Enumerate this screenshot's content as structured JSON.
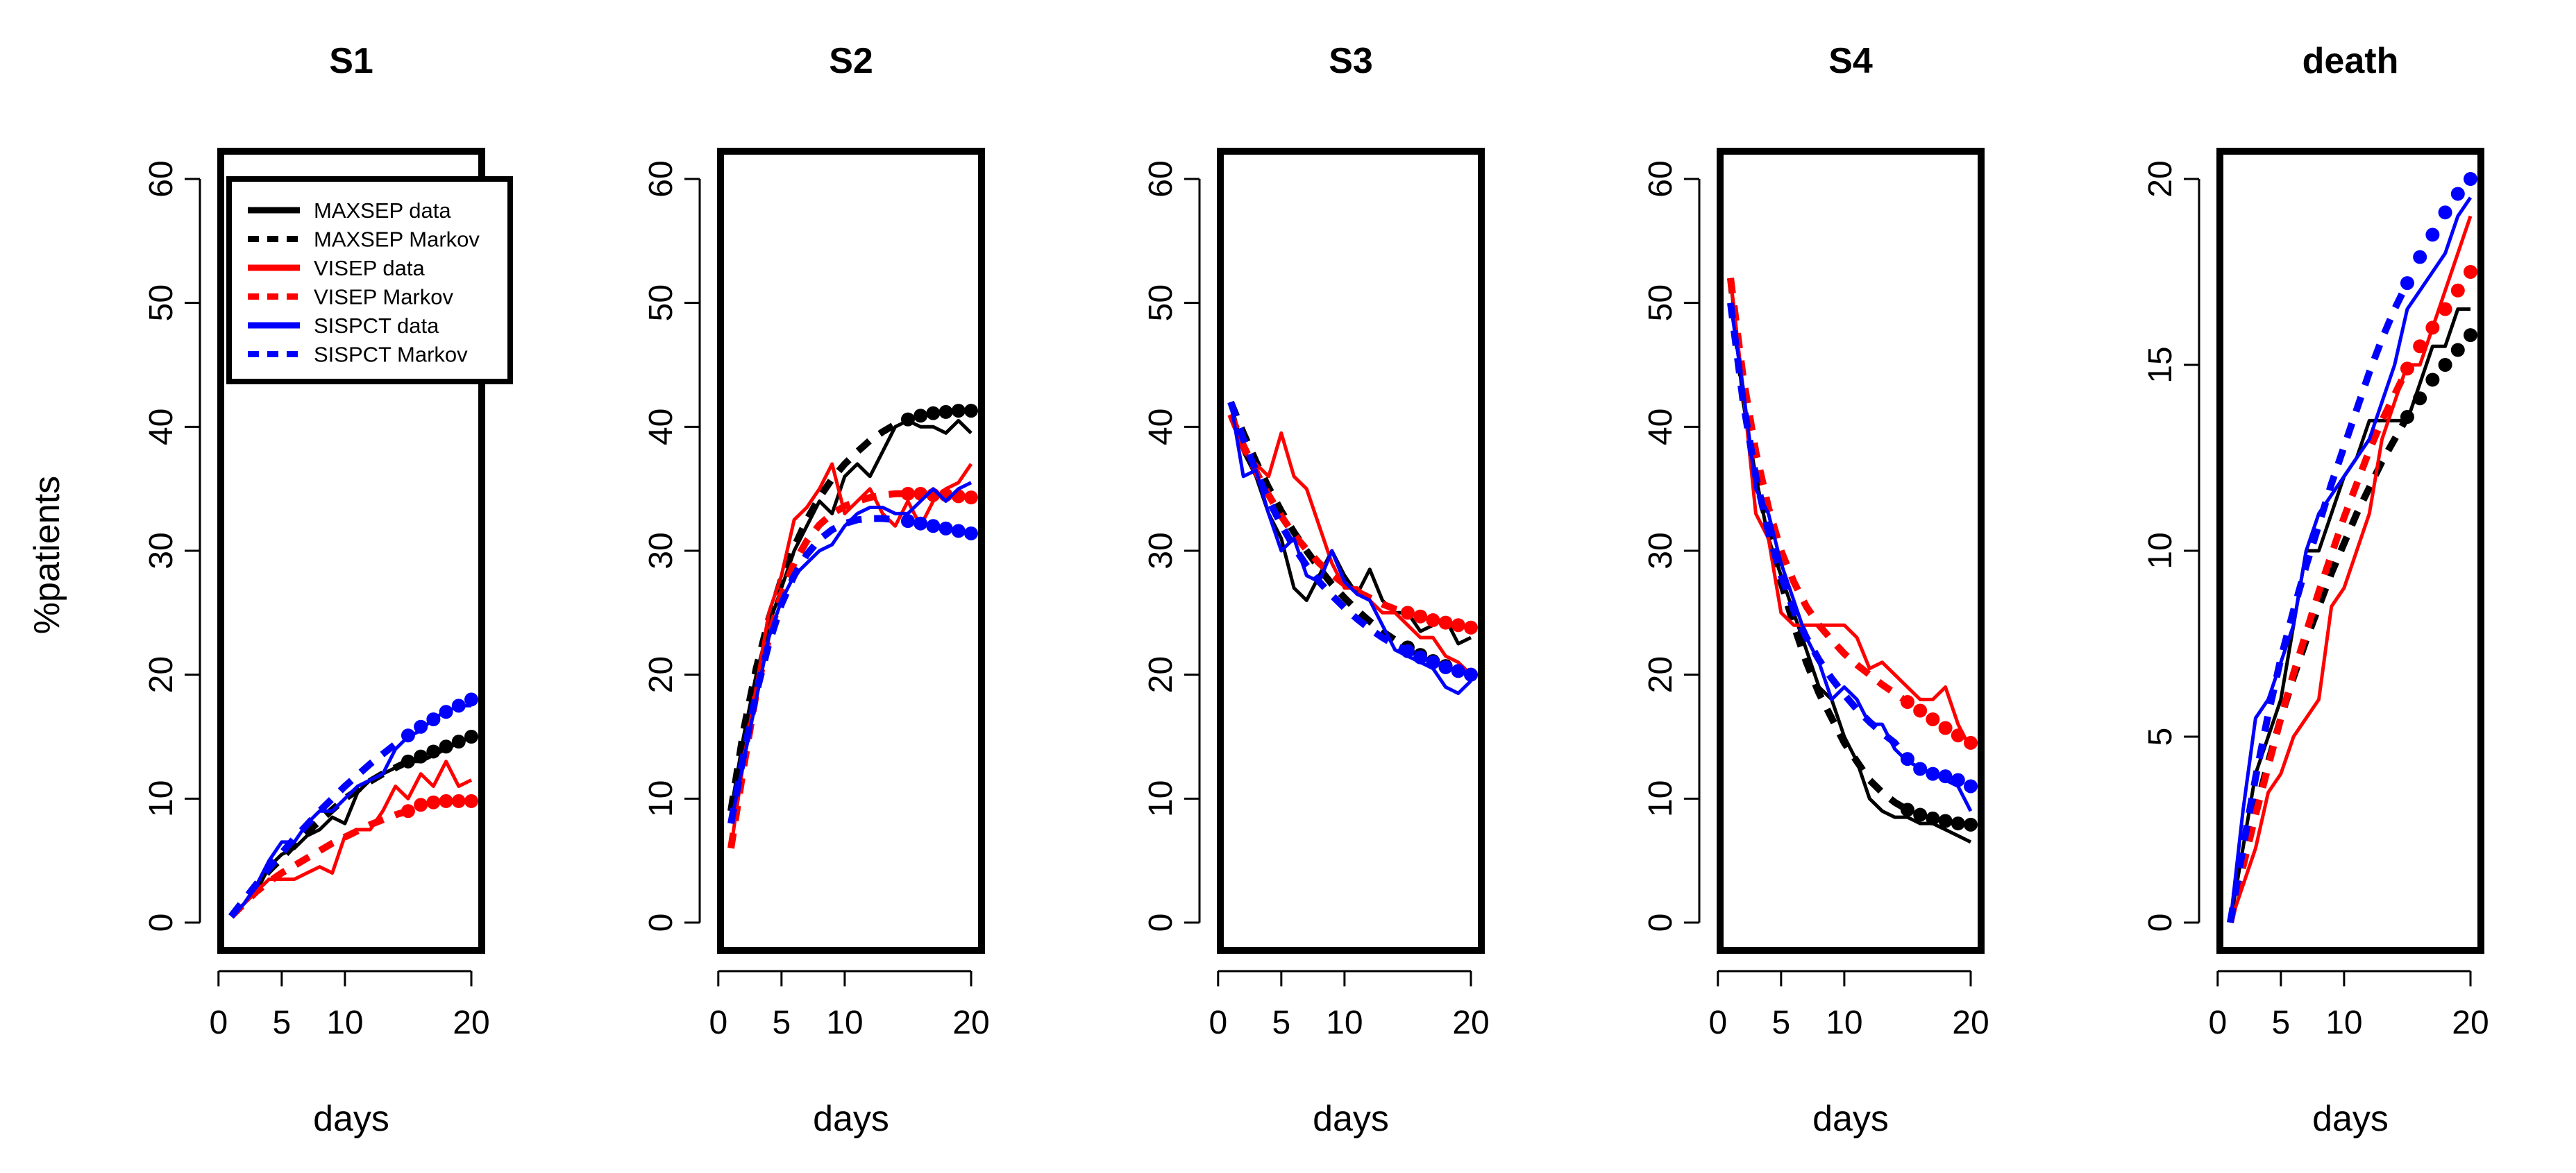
{
  "figure": {
    "ylabel": "%patients",
    "xlabel": "days"
  },
  "legend": {
    "placement": "top-left of first panel",
    "entries": [
      {
        "label": "MAXSEP data",
        "color": "#000000",
        "style": "solid"
      },
      {
        "label": "MAXSEP Markov",
        "color": "#000000",
        "style": "dashed"
      },
      {
        "label": "VISEP data",
        "color": "#ff0000",
        "style": "solid"
      },
      {
        "label": "VISEP Markov",
        "color": "#ff0000",
        "style": "dashed"
      },
      {
        "label": "SISPCT data",
        "color": "#0000ff",
        "style": "solid"
      },
      {
        "label": "SISPCT Markov",
        "color": "#0000ff",
        "style": "dashed"
      }
    ]
  },
  "colors": {
    "MAXSEP": "#000000",
    "VISEP": "#ff0000",
    "SISPCT": "#0000ff"
  },
  "chart_data": [
    {
      "type": "line",
      "title": "S1",
      "xlabel": "days",
      "ylabel": "%patients",
      "xlim": [
        1,
        20
      ],
      "ylim": [
        0,
        60
      ],
      "xticks": [
        0,
        5,
        10,
        20
      ],
      "yticks": [
        0,
        10,
        20,
        30,
        40,
        50,
        60
      ],
      "x": [
        1,
        2,
        3,
        4,
        5,
        6,
        7,
        8,
        9,
        10,
        11,
        12,
        13,
        14,
        15,
        16,
        17,
        18,
        19,
        20
      ],
      "series": [
        {
          "name": "MAXSEP data",
          "kind": "data",
          "group": "MAXSEP",
          "values": [
            0.5,
            1.5,
            2.5,
            4.5,
            5.5,
            6,
            7,
            7.5,
            8.5,
            8,
            10.5,
            11.5,
            12,
            12.5,
            13,
            13,
            13.5,
            14,
            14.5,
            15
          ]
        },
        {
          "name": "MAXSEP Markov",
          "kind": "markov",
          "group": "MAXSEP",
          "dots_from": 15,
          "values": [
            0.5,
            1.8,
            3,
            4.2,
            5.2,
            6.3,
            7.3,
            8.2,
            9.1,
            10,
            10.7,
            11.4,
            12,
            12.5,
            13,
            13.4,
            13.8,
            14.2,
            14.6,
            15
          ]
        },
        {
          "name": "VISEP data",
          "kind": "data",
          "group": "VISEP",
          "values": [
            0.5,
            1.5,
            2.5,
            3.5,
            3.5,
            3.5,
            4,
            4.5,
            4,
            7,
            7.5,
            7.5,
            9,
            11,
            10,
            12,
            11,
            13,
            11,
            11.5
          ]
        },
        {
          "name": "VISEP Markov",
          "kind": "markov",
          "group": "VISEP",
          "dots_from": 15,
          "values": [
            0.5,
            1.5,
            2.5,
            3.3,
            4,
            4.6,
            5.2,
            5.8,
            6.4,
            6.9,
            7.4,
            7.9,
            8.3,
            8.7,
            9,
            9.5,
            9.7,
            9.8,
            9.8,
            9.8
          ]
        },
        {
          "name": "SISPCT data",
          "kind": "data",
          "group": "SISPCT",
          "values": [
            0.5,
            1.5,
            3,
            5,
            6.5,
            6.5,
            8,
            9,
            9,
            10,
            11,
            11.5,
            12,
            14,
            15,
            15.5,
            16.5,
            17,
            17.5,
            17.5
          ]
        },
        {
          "name": "SISPCT Markov",
          "kind": "markov",
          "group": "SISPCT",
          "dots_from": 15,
          "values": [
            0.5,
            1.8,
            3.1,
            4.4,
            5.6,
            6.8,
            7.9,
            9,
            10,
            11,
            11.9,
            12.8,
            13.6,
            14.4,
            15.1,
            15.8,
            16.4,
            17,
            17.5,
            18
          ]
        }
      ]
    },
    {
      "type": "line",
      "title": "S2",
      "xlabel": "days",
      "ylabel": "%patients",
      "xlim": [
        1,
        20
      ],
      "ylim": [
        0,
        60
      ],
      "xticks": [
        0,
        5,
        10,
        20
      ],
      "yticks": [
        0,
        10,
        20,
        30,
        40,
        50,
        60
      ],
      "x": [
        1,
        2,
        3,
        4,
        5,
        6,
        7,
        8,
        9,
        10,
        11,
        12,
        13,
        14,
        15,
        16,
        17,
        18,
        19,
        20
      ],
      "series": [
        {
          "name": "MAXSEP data",
          "kind": "data",
          "group": "MAXSEP",
          "values": [
            9,
            15,
            20,
            24,
            27,
            30,
            32,
            34,
            33,
            36,
            37,
            36,
            38,
            40,
            40.5,
            40,
            40,
            39.5,
            40.5,
            39.5
          ]
        },
        {
          "name": "MAXSEP Markov",
          "kind": "markov",
          "group": "MAXSEP",
          "dots_from": 15,
          "values": [
            9,
            15.5,
            20.5,
            24.5,
            27.7,
            30.3,
            32.5,
            34.3,
            35.8,
            37,
            38,
            38.9,
            39.6,
            40.2,
            40.6,
            40.9,
            41.1,
            41.2,
            41.3,
            41.3
          ]
        },
        {
          "name": "VISEP data",
          "kind": "data",
          "group": "VISEP",
          "values": [
            6,
            13,
            19,
            25,
            28,
            32.5,
            33.5,
            35,
            37,
            33,
            34,
            35,
            33,
            32,
            34,
            32,
            34,
            35,
            35.5,
            37
          ]
        },
        {
          "name": "VISEP Markov",
          "kind": "markov",
          "group": "VISEP",
          "dots_from": 15,
          "values": [
            6,
            12.5,
            18.5,
            23,
            26.5,
            29,
            30.8,
            32.1,
            33,
            33.6,
            34,
            34.3,
            34.5,
            34.6,
            34.6,
            34.6,
            34.5,
            34.5,
            34.4,
            34.3
          ]
        },
        {
          "name": "SISPCT data",
          "kind": "data",
          "group": "SISPCT",
          "values": [
            8,
            13,
            18,
            23,
            26,
            28,
            29,
            30,
            30.5,
            32,
            33,
            33.5,
            33.5,
            33,
            33,
            34,
            35,
            34,
            35,
            35.5
          ]
        },
        {
          "name": "SISPCT Markov",
          "kind": "markov",
          "group": "SISPCT",
          "dots_from": 15,
          "values": [
            8,
            13.5,
            18.5,
            22.5,
            25.7,
            28,
            29.7,
            30.9,
            31.7,
            32.2,
            32.5,
            32.6,
            32.6,
            32.5,
            32.4,
            32.2,
            32,
            31.8,
            31.6,
            31.4
          ]
        }
      ]
    },
    {
      "type": "line",
      "title": "S3",
      "xlabel": "days",
      "ylabel": "%patients",
      "xlim": [
        1,
        20
      ],
      "ylim": [
        0,
        60
      ],
      "xticks": [
        0,
        5,
        10,
        20
      ],
      "yticks": [
        0,
        10,
        20,
        30,
        40,
        50,
        60
      ],
      "x": [
        1,
        2,
        3,
        4,
        5,
        6,
        7,
        8,
        9,
        10,
        11,
        12,
        13,
        14,
        15,
        16,
        17,
        18,
        19,
        20
      ],
      "series": [
        {
          "name": "MAXSEP data",
          "kind": "data",
          "group": "MAXSEP",
          "values": [
            42,
            38,
            36,
            33,
            31,
            27,
            26,
            28,
            30,
            28,
            26.5,
            28.5,
            26,
            25,
            25,
            23.5,
            24,
            24.5,
            22.5,
            23
          ]
        },
        {
          "name": "MAXSEP Markov",
          "kind": "markov",
          "group": "MAXSEP",
          "dots_from": 15,
          "values": [
            42,
            39.5,
            37.2,
            35.1,
            33.2,
            31.5,
            30,
            28.6,
            27.3,
            26.2,
            25.2,
            24.3,
            23.5,
            22.8,
            22.2,
            21.6,
            21.1,
            20.7,
            20.3,
            20
          ]
        },
        {
          "name": "VISEP data",
          "kind": "data",
          "group": "VISEP",
          "values": [
            41,
            38,
            37,
            36,
            39.5,
            36,
            35,
            32,
            29,
            27,
            27,
            26,
            25,
            25,
            24,
            23,
            23,
            21.5,
            21,
            20
          ]
        },
        {
          "name": "VISEP Markov",
          "kind": "markov",
          "group": "VISEP",
          "dots_from": 15,
          "values": [
            41,
            38.5,
            36.4,
            34.5,
            32.8,
            31.3,
            30.1,
            29,
            28.1,
            27.3,
            26.7,
            26.2,
            25.7,
            25.3,
            25,
            24.7,
            24.4,
            24.2,
            24,
            23.8
          ]
        },
        {
          "name": "SISPCT data",
          "kind": "data",
          "group": "SISPCT",
          "values": [
            42,
            36,
            36.5,
            33,
            30,
            31,
            28,
            27.5,
            30,
            27.5,
            26.5,
            26,
            24,
            22,
            21.5,
            21,
            20.5,
            19,
            18.5,
            19.5
          ]
        },
        {
          "name": "SISPCT Markov",
          "kind": "markov",
          "group": "SISPCT",
          "dots_from": 15,
          "values": [
            42,
            39,
            36.4,
            34.1,
            32.1,
            30.3,
            28.8,
            27.5,
            26.4,
            25.4,
            24.5,
            23.7,
            23,
            22.4,
            21.9,
            21.4,
            21,
            20.6,
            20.3,
            20
          ]
        }
      ]
    },
    {
      "type": "line",
      "title": "S4",
      "xlabel": "days",
      "ylabel": "%patients",
      "xlim": [
        1,
        20
      ],
      "ylim": [
        0,
        60
      ],
      "xticks": [
        0,
        5,
        10,
        20
      ],
      "yticks": [
        0,
        10,
        20,
        30,
        40,
        50,
        60
      ],
      "x": [
        1,
        2,
        3,
        4,
        5,
        6,
        7,
        8,
        9,
        10,
        11,
        12,
        13,
        14,
        15,
        16,
        17,
        18,
        19,
        20
      ],
      "series": [
        {
          "name": "MAXSEP data",
          "kind": "data",
          "group": "MAXSEP",
          "values": [
            52,
            42,
            36,
            31,
            28,
            25,
            22,
            19,
            18,
            15,
            13,
            10,
            9,
            8.5,
            8.5,
            8,
            8,
            7.5,
            7,
            6.5
          ]
        },
        {
          "name": "MAXSEP Markov",
          "kind": "markov",
          "group": "MAXSEP",
          "dots_from": 15,
          "values": [
            52,
            43,
            36.5,
            31.5,
            27.5,
            24,
            21,
            18.5,
            16.5,
            14.5,
            13,
            11.5,
            10.5,
            9.7,
            9.1,
            8.7,
            8.4,
            8.2,
            8,
            7.9
          ]
        },
        {
          "name": "VISEP data",
          "kind": "data",
          "group": "VISEP",
          "values": [
            52,
            43,
            33,
            31,
            25,
            24,
            24,
            24,
            24,
            24,
            23,
            20.5,
            21,
            20,
            19,
            18,
            18,
            19,
            16,
            14
          ]
        },
        {
          "name": "VISEP Markov",
          "kind": "markov",
          "group": "VISEP",
          "dots_from": 15,
          "values": [
            52,
            44,
            38,
            33.5,
            30,
            27.5,
            25.5,
            24,
            22.8,
            21.7,
            20.8,
            20,
            19.2,
            18.5,
            17.8,
            17.1,
            16.4,
            15.7,
            15.1,
            14.5
          ]
        },
        {
          "name": "SISPCT data",
          "kind": "data",
          "group": "SISPCT",
          "values": [
            50,
            43,
            35,
            33,
            29,
            26,
            23,
            21,
            18,
            19,
            18,
            16,
            16,
            14,
            13,
            12.5,
            12,
            11.5,
            11,
            9
          ]
        },
        {
          "name": "SISPCT Markov",
          "kind": "markov",
          "group": "SISPCT",
          "dots_from": 15,
          "values": [
            50,
            42,
            36,
            31.5,
            28,
            25.2,
            23,
            21.2,
            19.7,
            18.4,
            17.2,
            16.2,
            15.3,
            14.5,
            13.2,
            12.4,
            12,
            11.8,
            11.5,
            11
          ]
        }
      ]
    },
    {
      "type": "line",
      "title": "death",
      "xlabel": "days",
      "ylabel": "%patients",
      "xlim": [
        1,
        20
      ],
      "ylim": [
        0,
        20
      ],
      "xticks": [
        0,
        5,
        10,
        20
      ],
      "yticks": [
        0,
        5,
        10,
        15,
        20
      ],
      "x": [
        1,
        2,
        3,
        4,
        5,
        6,
        7,
        8,
        9,
        10,
        11,
        12,
        13,
        14,
        15,
        16,
        17,
        18,
        19,
        20
      ],
      "series": [
        {
          "name": "MAXSEP data",
          "kind": "data",
          "group": "MAXSEP",
          "values": [
            0,
            2,
            4,
            5,
            6,
            8,
            10,
            10,
            11,
            12,
            12.5,
            13.5,
            13.5,
            13.5,
            13.5,
            14.5,
            15.5,
            15.5,
            16.5,
            16.5
          ]
        },
        {
          "name": "MAXSEP Markov",
          "kind": "markov",
          "group": "MAXSEP",
          "dots_from": 15,
          "values": [
            0,
            1.6,
            3,
            4.3,
            5.5,
            6.6,
            7.6,
            8.5,
            9.4,
            10.2,
            11,
            11.7,
            12.4,
            13,
            13.6,
            14.1,
            14.6,
            15,
            15.4,
            15.8
          ]
        },
        {
          "name": "VISEP data",
          "kind": "data",
          "group": "VISEP",
          "values": [
            0,
            1,
            2,
            3.5,
            4,
            5,
            5.5,
            6,
            8.5,
            9,
            10,
            11,
            13,
            14,
            15,
            15,
            16,
            17,
            18,
            19
          ]
        },
        {
          "name": "VISEP Markov",
          "kind": "markov",
          "group": "VISEP",
          "dots_from": 15,
          "values": [
            0,
            1.5,
            2.9,
            4.2,
            5.5,
            6.7,
            7.8,
            8.9,
            9.9,
            10.9,
            11.8,
            12.7,
            13.5,
            14.2,
            14.9,
            15.5,
            16,
            16.5,
            17,
            17.5
          ]
        },
        {
          "name": "SISPCT data",
          "kind": "data",
          "group": "SISPCT",
          "values": [
            0,
            3,
            5.5,
            6,
            7,
            8,
            10,
            11,
            11.5,
            12,
            12.5,
            13,
            14,
            15,
            16.5,
            17,
            17.5,
            18,
            19,
            19.5
          ]
        },
        {
          "name": "SISPCT Markov",
          "kind": "markov",
          "group": "SISPCT",
          "dots_from": 15,
          "values": [
            0,
            2,
            3.9,
            5.6,
            7.1,
            8.4,
            9.6,
            10.7,
            11.8,
            12.8,
            13.8,
            14.8,
            15.7,
            16.5,
            17.2,
            17.9,
            18.5,
            19.1,
            19.6,
            20
          ]
        }
      ]
    }
  ]
}
